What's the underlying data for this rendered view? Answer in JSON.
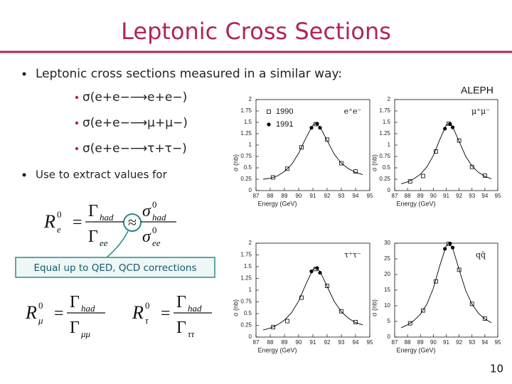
{
  "header": {
    "title": "Leptonic Cross Sections"
  },
  "bullets": [
    {
      "text": "Leptonic cross sections measured in a similar way:",
      "sub": [
        "σ(e+e−⟶e+e−)",
        "σ(e+e−⟶μ+μ−)",
        "σ(e+e−⟶τ+τ−)"
      ]
    },
    {
      "text": "Use to extract values for"
    }
  ],
  "formulas": [
    {
      "lhs": "R",
      "lhs_sup": "0",
      "lhs_sub": "e",
      "eq": "=",
      "num": "Γ",
      "num_sub": "had",
      "den": "Γ",
      "den_sub": "ee",
      "approx": "≈",
      "num2": "σ",
      "num2_sup": "0",
      "num2_sub": "had",
      "den2": "σ",
      "den2_sup": "0",
      "den2_sub": "ee"
    },
    {
      "lhs": "R",
      "lhs_sup": "0",
      "lhs_sub": "μ",
      "eq": "=",
      "num": "Γ",
      "num_sub": "had",
      "den": "Γ",
      "den_sub": "μμ"
    },
    {
      "lhs": "R",
      "lhs_sup": "0",
      "lhs_sub": "τ",
      "eq": "=",
      "num": "Γ",
      "num_sub": "had",
      "den": "Γ",
      "den_sub": "ττ"
    }
  ],
  "callout": "Equal up to QED, QCD corrections",
  "figure_label": "ALEPH",
  "page_number": "10",
  "chart_data": [
    {
      "type": "scatter",
      "annotation": "e⁺e⁻",
      "xlabel": "Energy (GeV)",
      "ylabel": "σ (nb)",
      "xlim": [
        87,
        95
      ],
      "xticks": [
        87,
        88,
        89,
        90,
        91,
        92,
        93,
        94,
        95
      ],
      "ylim": [
        0,
        2
      ],
      "yticks": [
        0,
        0.25,
        0.5,
        0.75,
        1,
        1.25,
        1.5,
        1.75,
        2
      ],
      "legend": true,
      "series": [
        {
          "name": "1990",
          "color": "#000000",
          "marker": "open-square",
          "x": [
            88.2,
            89.2,
            90.2,
            91.2,
            92.0,
            93.0,
            94.0
          ],
          "values": [
            0.29,
            0.48,
            0.95,
            1.46,
            1.12,
            0.6,
            0.42
          ]
        },
        {
          "name": "1991",
          "color": "#000000",
          "marker": "filled-circle",
          "x": [
            90.9,
            91.3,
            91.5
          ],
          "values": [
            1.38,
            1.47,
            1.38
          ]
        },
        {
          "color": "#000000",
          "style": "line",
          "x": [
            87.5,
            88,
            88.5,
            89,
            89.5,
            90,
            90.5,
            91,
            91.2,
            91.5,
            92,
            92.5,
            93,
            93.5,
            94,
            94.5
          ],
          "values": [
            0.25,
            0.27,
            0.32,
            0.42,
            0.57,
            0.82,
            1.15,
            1.44,
            1.47,
            1.4,
            1.1,
            0.8,
            0.6,
            0.48,
            0.4,
            0.35
          ]
        }
      ]
    },
    {
      "type": "scatter",
      "annotation": "μ⁺μ⁻",
      "xlabel": "Energy (GeV)",
      "ylabel": "σ (nb)",
      "xlim": [
        87,
        95
      ],
      "xticks": [
        87,
        88,
        89,
        90,
        91,
        92,
        93,
        94,
        95
      ],
      "ylim": [
        0,
        2
      ],
      "yticks": [
        0,
        0.25,
        0.5,
        0.75,
        1,
        1.25,
        1.5,
        1.75,
        2
      ],
      "series": [
        {
          "color": "#000000",
          "marker": "open-square",
          "x": [
            88.2,
            89.2,
            90.2,
            91.2,
            92.0,
            93.0,
            94.0
          ],
          "values": [
            0.2,
            0.32,
            0.86,
            1.47,
            1.1,
            0.52,
            0.33
          ]
        },
        {
          "color": "#000000",
          "marker": "filled-circle",
          "x": [
            90.9,
            91.3,
            91.5
          ],
          "values": [
            1.36,
            1.46,
            1.39
          ]
        },
        {
          "color": "#000000",
          "style": "line",
          "x": [
            87.5,
            88,
            88.5,
            89,
            89.5,
            90,
            90.5,
            91,
            91.2,
            91.5,
            92,
            92.5,
            93,
            93.5,
            94,
            94.5
          ],
          "values": [
            0.15,
            0.19,
            0.26,
            0.36,
            0.52,
            0.77,
            1.12,
            1.44,
            1.48,
            1.4,
            1.08,
            0.76,
            0.54,
            0.4,
            0.31,
            0.26
          ]
        }
      ]
    },
    {
      "type": "scatter",
      "annotation": "τ⁺τ⁻",
      "xlabel": "Energy (GeV)",
      "ylabel": "σ (nb)",
      "xlim": [
        87,
        95
      ],
      "xticks": [
        87,
        88,
        89,
        90,
        91,
        92,
        93,
        94,
        95
      ],
      "ylim": [
        0,
        2
      ],
      "yticks": [
        0,
        0.25,
        0.5,
        0.75,
        1,
        1.25,
        1.5,
        1.75,
        2
      ],
      "series": [
        {
          "color": "#000000",
          "marker": "open-square",
          "x": [
            88.2,
            89.2,
            90.2,
            91.2,
            92.0,
            93.0,
            94.0
          ],
          "values": [
            0.21,
            0.34,
            0.84,
            1.45,
            1.09,
            0.55,
            0.32
          ]
        },
        {
          "color": "#000000",
          "marker": "filled-circle",
          "x": [
            90.9,
            91.3,
            91.5
          ],
          "values": [
            1.4,
            1.47,
            1.37
          ]
        },
        {
          "color": "#000000",
          "style": "line",
          "x": [
            87.5,
            88,
            88.5,
            89,
            89.5,
            90,
            90.5,
            91,
            91.2,
            91.5,
            92,
            92.5,
            93,
            93.5,
            94,
            94.5
          ],
          "values": [
            0.15,
            0.19,
            0.26,
            0.36,
            0.52,
            0.77,
            1.12,
            1.44,
            1.48,
            1.4,
            1.08,
            0.76,
            0.54,
            0.4,
            0.31,
            0.26
          ]
        }
      ]
    },
    {
      "type": "scatter",
      "annotation": "qq̄",
      "xlabel": "Energy (GeV)",
      "ylabel": "σ (nb)",
      "xlim": [
        87,
        95
      ],
      "xticks": [
        87,
        88,
        89,
        90,
        91,
        92,
        93,
        94,
        95
      ],
      "ylim": [
        0,
        30
      ],
      "yticks": [
        0,
        5,
        10,
        15,
        20,
        25,
        30
      ],
      "series": [
        {
          "color": "#000000",
          "marker": "open-square",
          "x": [
            88.2,
            89.2,
            90.2,
            91.2,
            92.0,
            93.0,
            94.0
          ],
          "values": [
            4.4,
            8.5,
            17.8,
            29.8,
            21.5,
            10.6,
            5.9
          ]
        },
        {
          "color": "#000000",
          "marker": "filled-circle",
          "x": [
            90.9,
            91.3,
            91.5
          ],
          "values": [
            28.2,
            29.9,
            28.6
          ]
        },
        {
          "color": "#000000",
          "style": "line",
          "x": [
            87.5,
            88,
            88.5,
            89,
            89.5,
            90,
            90.5,
            91,
            91.2,
            91.5,
            92,
            92.5,
            93,
            93.5,
            94,
            94.5
          ],
          "values": [
            3,
            3.9,
            5.3,
            7.3,
            10.5,
            15.6,
            22.8,
            29.2,
            30,
            28.4,
            21.6,
            15,
            10.5,
            7.6,
            5.8,
            4.6
          ]
        }
      ]
    }
  ]
}
